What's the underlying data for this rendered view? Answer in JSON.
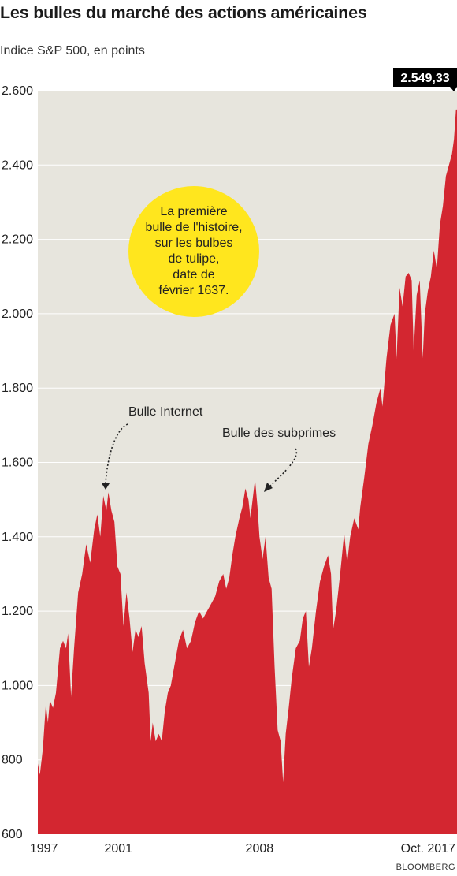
{
  "title": "Les bulles du marché des actions américaines",
  "subtitle": "Indice S&P 500, en points",
  "source": "BLOOMBERG",
  "colors": {
    "area": "#d32630",
    "background": "#e7e5dd",
    "callout": "#ffe61e",
    "label_box": "#000000"
  },
  "callout_lines": [
    "La première",
    "bulle de l'histoire,",
    "sur les bulbes",
    "de tulipe,",
    "date de",
    "février 1637."
  ],
  "chart_data": {
    "type": "area",
    "ylim": [
      600,
      2600
    ],
    "ytick_values": [
      600,
      800,
      1000,
      1200,
      1400,
      1600,
      1800,
      2000,
      2200,
      2400,
      2600
    ],
    "ytick_labels": [
      "600",
      "800",
      "1.000",
      "1.200",
      "1.400",
      "1.600",
      "1.800",
      "2.000",
      "2.200",
      "2.400",
      "2.600"
    ],
    "xlim": [
      1997.0,
      2017.8
    ],
    "xtick_values": [
      1997.3,
      2001.0,
      2008.0,
      2017.1
    ],
    "xtick_labels": [
      "1997",
      "2001",
      "2008",
      "Oct. 2017"
    ],
    "last_value_label": "2.549,33",
    "annotations": [
      {
        "text": "Bulle Internet",
        "x": 2000.7,
        "y": 1520
      },
      {
        "text": "Bulle des subprimes",
        "x": 2007.8,
        "y": 1530
      }
    ],
    "series": [
      {
        "values": [
          [
            1997.0,
            790
          ],
          [
            1997.1,
            760
          ],
          [
            1997.25,
            830
          ],
          [
            1997.4,
            950
          ],
          [
            1997.5,
            900
          ],
          [
            1997.6,
            960
          ],
          [
            1997.75,
            940
          ],
          [
            1997.9,
            980
          ],
          [
            1998.1,
            1100
          ],
          [
            1998.25,
            1120
          ],
          [
            1998.4,
            1100
          ],
          [
            1998.5,
            1140
          ],
          [
            1998.65,
            970
          ],
          [
            1998.8,
            1100
          ],
          [
            1999.0,
            1250
          ],
          [
            1999.2,
            1300
          ],
          [
            1999.4,
            1380
          ],
          [
            1999.6,
            1330
          ],
          [
            1999.8,
            1420
          ],
          [
            1999.95,
            1460
          ],
          [
            2000.1,
            1400
          ],
          [
            2000.25,
            1510
          ],
          [
            2000.4,
            1470
          ],
          [
            2000.5,
            1520
          ],
          [
            2000.65,
            1470
          ],
          [
            2000.8,
            1440
          ],
          [
            2000.95,
            1320
          ],
          [
            2001.1,
            1300
          ],
          [
            2001.25,
            1160
          ],
          [
            2001.4,
            1250
          ],
          [
            2001.55,
            1180
          ],
          [
            2001.7,
            1090
          ],
          [
            2001.85,
            1150
          ],
          [
            2002.0,
            1130
          ],
          [
            2002.15,
            1160
          ],
          [
            2002.3,
            1060
          ],
          [
            2002.5,
            980
          ],
          [
            2002.6,
            850
          ],
          [
            2002.7,
            900
          ],
          [
            2002.85,
            850
          ],
          [
            2003.0,
            870
          ],
          [
            2003.15,
            850
          ],
          [
            2003.3,
            930
          ],
          [
            2003.45,
            980
          ],
          [
            2003.6,
            1000
          ],
          [
            2003.8,
            1060
          ],
          [
            2004.0,
            1120
          ],
          [
            2004.2,
            1150
          ],
          [
            2004.4,
            1100
          ],
          [
            2004.6,
            1120
          ],
          [
            2004.8,
            1170
          ],
          [
            2005.0,
            1200
          ],
          [
            2005.2,
            1180
          ],
          [
            2005.4,
            1200
          ],
          [
            2005.6,
            1220
          ],
          [
            2005.8,
            1240
          ],
          [
            2006.0,
            1280
          ],
          [
            2006.2,
            1300
          ],
          [
            2006.35,
            1260
          ],
          [
            2006.5,
            1290
          ],
          [
            2006.65,
            1350
          ],
          [
            2006.8,
            1400
          ],
          [
            2007.0,
            1450
          ],
          [
            2007.15,
            1480
          ],
          [
            2007.3,
            1530
          ],
          [
            2007.45,
            1500
          ],
          [
            2007.55,
            1450
          ],
          [
            2007.7,
            1520
          ],
          [
            2007.78,
            1555
          ],
          [
            2007.9,
            1480
          ],
          [
            2008.0,
            1400
          ],
          [
            2008.15,
            1340
          ],
          [
            2008.3,
            1400
          ],
          [
            2008.45,
            1290
          ],
          [
            2008.6,
            1260
          ],
          [
            2008.75,
            1050
          ],
          [
            2008.9,
            880
          ],
          [
            2009.05,
            850
          ],
          [
            2009.17,
            740
          ],
          [
            2009.3,
            870
          ],
          [
            2009.45,
            940
          ],
          [
            2009.6,
            1020
          ],
          [
            2009.8,
            1100
          ],
          [
            2010.0,
            1120
          ],
          [
            2010.15,
            1180
          ],
          [
            2010.3,
            1200
          ],
          [
            2010.45,
            1050
          ],
          [
            2010.6,
            1100
          ],
          [
            2010.8,
            1200
          ],
          [
            2011.0,
            1280
          ],
          [
            2011.2,
            1320
          ],
          [
            2011.4,
            1350
          ],
          [
            2011.55,
            1300
          ],
          [
            2011.65,
            1150
          ],
          [
            2011.8,
            1200
          ],
          [
            2012.0,
            1300
          ],
          [
            2012.2,
            1410
          ],
          [
            2012.35,
            1330
          ],
          [
            2012.5,
            1400
          ],
          [
            2012.7,
            1450
          ],
          [
            2012.9,
            1420
          ],
          [
            2013.0,
            1480
          ],
          [
            2013.2,
            1560
          ],
          [
            2013.4,
            1650
          ],
          [
            2013.6,
            1700
          ],
          [
            2013.8,
            1760
          ],
          [
            2014.0,
            1800
          ],
          [
            2014.1,
            1750
          ],
          [
            2014.3,
            1880
          ],
          [
            2014.5,
            1970
          ],
          [
            2014.7,
            2000
          ],
          [
            2014.8,
            1880
          ],
          [
            2014.95,
            2070
          ],
          [
            2015.1,
            2020
          ],
          [
            2015.25,
            2100
          ],
          [
            2015.4,
            2110
          ],
          [
            2015.55,
            2090
          ],
          [
            2015.65,
            1900
          ],
          [
            2015.8,
            2050
          ],
          [
            2015.95,
            2090
          ],
          [
            2016.1,
            1880
          ],
          [
            2016.2,
            2000
          ],
          [
            2016.35,
            2060
          ],
          [
            2016.5,
            2100
          ],
          [
            2016.65,
            2170
          ],
          [
            2016.8,
            2120
          ],
          [
            2016.95,
            2240
          ],
          [
            2017.1,
            2290
          ],
          [
            2017.25,
            2370
          ],
          [
            2017.4,
            2400
          ],
          [
            2017.55,
            2430
          ],
          [
            2017.65,
            2470
          ],
          [
            2017.75,
            2549.33
          ]
        ]
      }
    ]
  }
}
